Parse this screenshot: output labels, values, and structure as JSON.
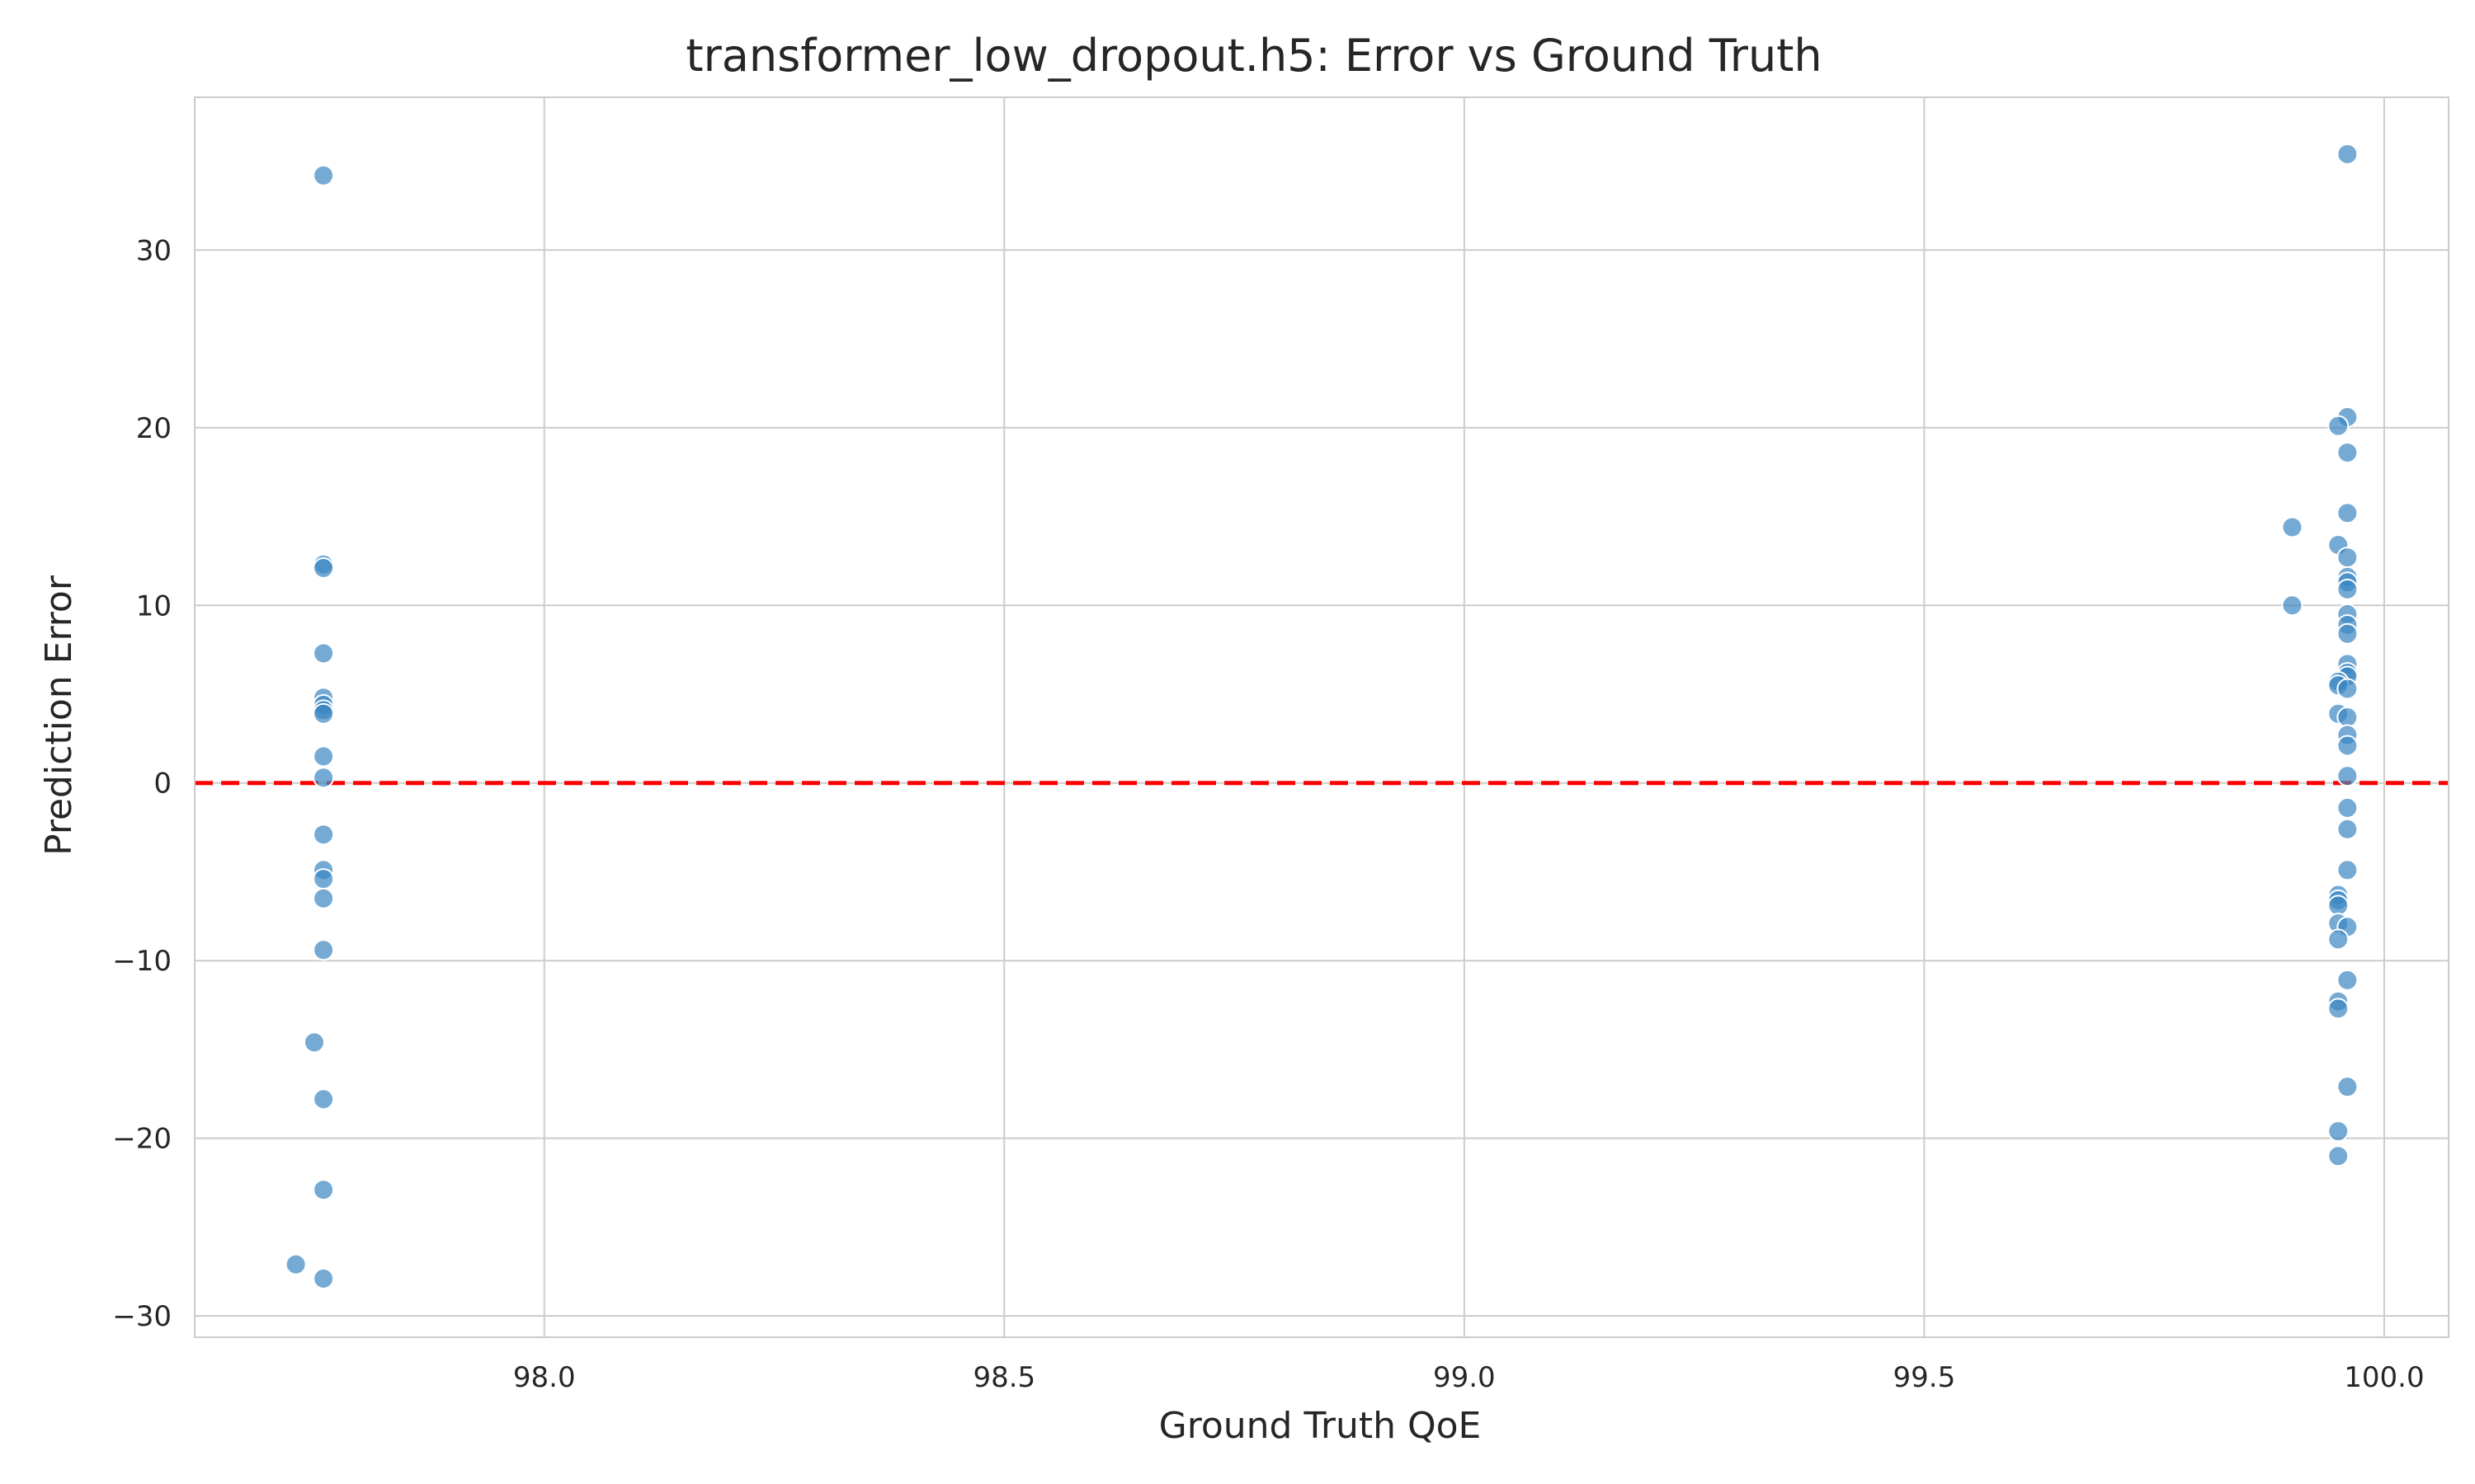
{
  "chart_data": {
    "type": "scatter",
    "title": "transformer_low_dropout.h5: Error vs Ground Truth",
    "xlabel": "Ground Truth QoE",
    "ylabel": "Prediction Error",
    "xlim": [
      97.62,
      100.07
    ],
    "ylim": [
      -31.2,
      38.6
    ],
    "xticks": [
      98.0,
      98.5,
      99.0,
      99.5,
      100.0
    ],
    "xtick_labels": [
      "98.0",
      "98.5",
      "99.0",
      "99.5",
      "100.0"
    ],
    "yticks": [
      -30,
      -20,
      -10,
      0,
      10,
      20,
      30
    ],
    "ytick_labels": [
      "−30",
      "−20",
      "−10",
      "0",
      "10",
      "20",
      "30"
    ],
    "grid": true,
    "reference_line": {
      "y": 0,
      "style": "dashed",
      "color": "#ff0000"
    },
    "point_color": "#3a86c2",
    "points": [
      {
        "x": 97.76,
        "y": 34.2
      },
      {
        "x": 97.76,
        "y": 12.3
      },
      {
        "x": 97.76,
        "y": 12.1
      },
      {
        "x": 97.76,
        "y": 7.3
      },
      {
        "x": 97.76,
        "y": 4.8
      },
      {
        "x": 97.76,
        "y": 4.4
      },
      {
        "x": 97.76,
        "y": 4.1
      },
      {
        "x": 97.76,
        "y": 3.9
      },
      {
        "x": 97.76,
        "y": 1.5
      },
      {
        "x": 97.76,
        "y": 0.3
      },
      {
        "x": 97.76,
        "y": -2.9
      },
      {
        "x": 97.76,
        "y": -4.9
      },
      {
        "x": 97.76,
        "y": -5.4
      },
      {
        "x": 97.76,
        "y": -6.5
      },
      {
        "x": 97.76,
        "y": -9.4
      },
      {
        "x": 97.75,
        "y": -14.6
      },
      {
        "x": 97.76,
        "y": -17.8
      },
      {
        "x": 97.76,
        "y": -22.9
      },
      {
        "x": 97.73,
        "y": -27.1
      },
      {
        "x": 97.76,
        "y": -27.9
      },
      {
        "x": 99.96,
        "y": 35.4
      },
      {
        "x": 99.96,
        "y": 20.6
      },
      {
        "x": 99.95,
        "y": 20.1
      },
      {
        "x": 99.96,
        "y": 18.6
      },
      {
        "x": 99.96,
        "y": 15.2
      },
      {
        "x": 99.9,
        "y": 14.4
      },
      {
        "x": 99.95,
        "y": 13.4
      },
      {
        "x": 99.96,
        "y": 12.7
      },
      {
        "x": 99.96,
        "y": 11.6
      },
      {
        "x": 99.96,
        "y": 11.3
      },
      {
        "x": 99.96,
        "y": 10.9
      },
      {
        "x": 99.9,
        "y": 10.0
      },
      {
        "x": 99.96,
        "y": 9.5
      },
      {
        "x": 99.96,
        "y": 8.9
      },
      {
        "x": 99.96,
        "y": 8.4
      },
      {
        "x": 99.96,
        "y": 6.7
      },
      {
        "x": 99.96,
        "y": 6.2
      },
      {
        "x": 99.96,
        "y": 6.0
      },
      {
        "x": 99.95,
        "y": 5.7
      },
      {
        "x": 99.95,
        "y": 5.5
      },
      {
        "x": 99.96,
        "y": 5.3
      },
      {
        "x": 99.95,
        "y": 3.9
      },
      {
        "x": 99.96,
        "y": 3.7
      },
      {
        "x": 99.96,
        "y": 2.7
      },
      {
        "x": 99.96,
        "y": 2.1
      },
      {
        "x": 99.96,
        "y": 0.4
      },
      {
        "x": 99.96,
        "y": -1.4
      },
      {
        "x": 99.96,
        "y": -2.6
      },
      {
        "x": 99.96,
        "y": -4.9
      },
      {
        "x": 99.95,
        "y": -6.3
      },
      {
        "x": 99.95,
        "y": -6.6
      },
      {
        "x": 99.95,
        "y": -6.9
      },
      {
        "x": 99.95,
        "y": -7.9
      },
      {
        "x": 99.96,
        "y": -8.1
      },
      {
        "x": 99.95,
        "y": -8.8
      },
      {
        "x": 99.96,
        "y": -11.1
      },
      {
        "x": 99.95,
        "y": -12.3
      },
      {
        "x": 99.95,
        "y": -12.7
      },
      {
        "x": 99.96,
        "y": -17.1
      },
      {
        "x": 99.95,
        "y": -19.6
      },
      {
        "x": 99.95,
        "y": -21.0
      }
    ]
  }
}
